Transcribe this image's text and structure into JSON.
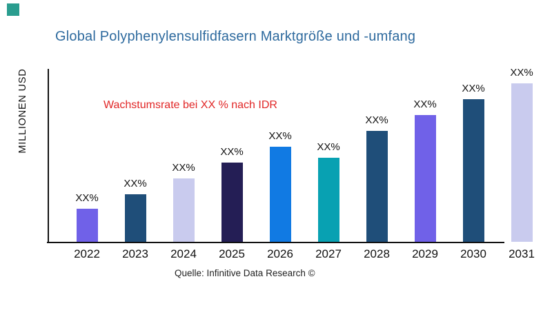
{
  "brand": {
    "logo_color": "#2a9d8f"
  },
  "header": {
    "title": "Global Polyphenylensulfidfasern Marktgröße und -umfang",
    "title_color": "#2e6a9e"
  },
  "annotation": {
    "text": "Wachstumsrate bei XX % nach IDR",
    "color": "#e12626"
  },
  "footer": {
    "source": "Quelle: Infinitive Data Research ©"
  },
  "chart_data": {
    "type": "bar",
    "title": "Global Polyphenylensulfidfasern Marktgröße und -umfang",
    "xlabel": "",
    "ylabel": "MILLIONEN USD",
    "categories": [
      "2022",
      "2023",
      "2024",
      "2025",
      "2026",
      "2027",
      "2028",
      "2029",
      "2030",
      "2031"
    ],
    "values_relative": [
      21,
      30,
      40,
      50,
      60,
      53,
      70,
      80,
      90,
      100
    ],
    "values_note": "No numeric y-axis shown; every bar is labeled 'XX%'. values_relative are bar heights as % of the tallest bar (2031).",
    "bar_labels": [
      "XX%",
      "XX%",
      "XX%",
      "XX%",
      "XX%",
      "XX%",
      "XX%",
      "XX%",
      "XX%",
      "XX%"
    ],
    "bar_colors": [
      "#7061e8",
      "#1f4e79",
      "#c9cbee",
      "#241e55",
      "#117ae3",
      "#08a1b2",
      "#1f4e79",
      "#7061e8",
      "#1f4e79",
      "#c9cbee"
    ],
    "axis_color": "#111111",
    "y_tick_labels": [],
    "grid": false,
    "legend": false
  }
}
